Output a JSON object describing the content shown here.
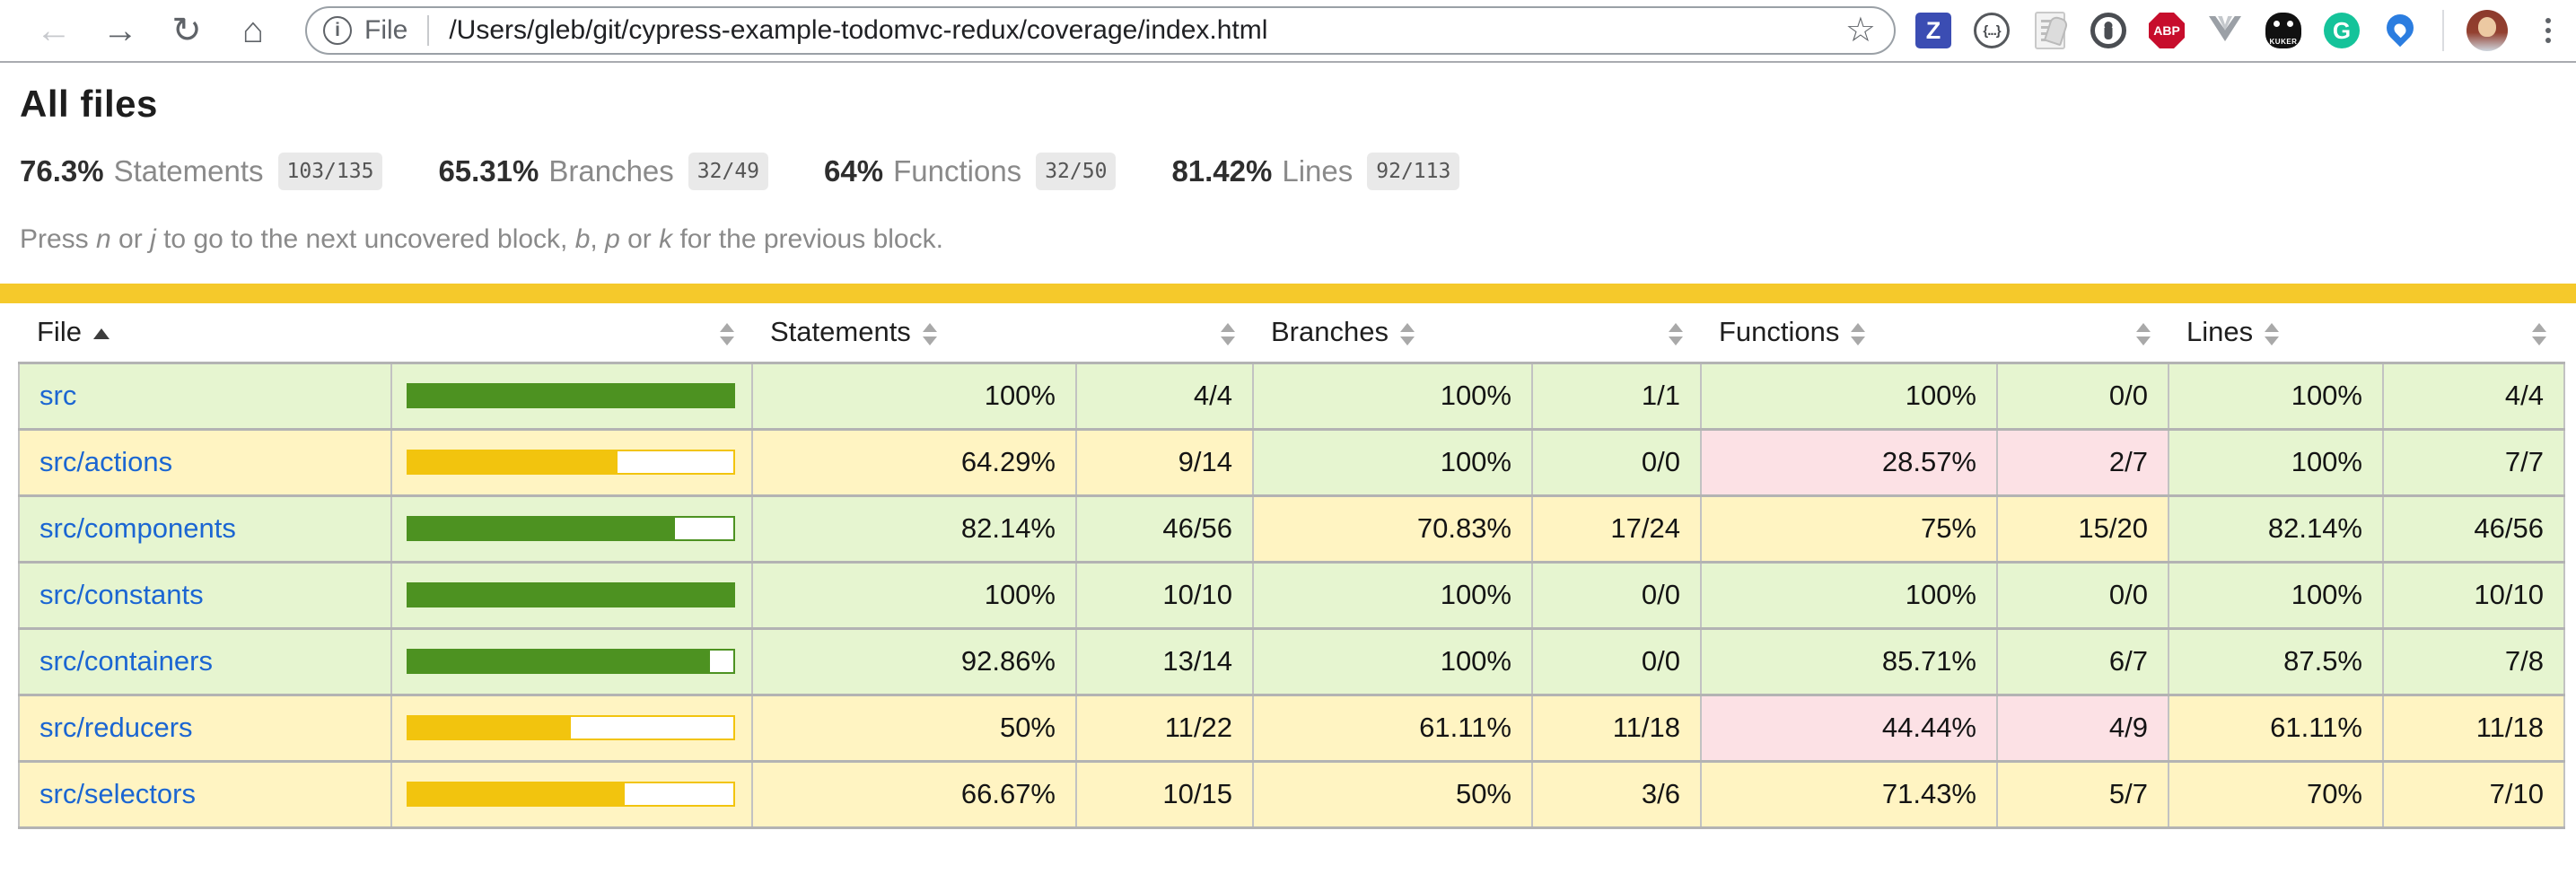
{
  "browser": {
    "address": {
      "scheme_label": "File",
      "url": "/Users/gleb/git/cypress-example-todomvc-redux/coverage/index.html"
    },
    "extension_labels": {
      "z": "Z",
      "json": "{...}",
      "abp": "ABP",
      "kuker": "KUKER",
      "grammarly": "G"
    }
  },
  "page": {
    "title": "All files",
    "summary": [
      {
        "pct": "76.3%",
        "label": "Statements",
        "fraction": "103/135"
      },
      {
        "pct": "65.31%",
        "label": "Branches",
        "fraction": "32/49"
      },
      {
        "pct": "64%",
        "label": "Functions",
        "fraction": "32/50"
      },
      {
        "pct": "81.42%",
        "label": "Lines",
        "fraction": "92/113"
      }
    ],
    "keyboard_help": [
      {
        "text": "Press "
      },
      {
        "text": "n",
        "italic": true
      },
      {
        "text": " or "
      },
      {
        "text": "j",
        "italic": true
      },
      {
        "text": " to go to the next uncovered block, "
      },
      {
        "text": "b",
        "italic": true
      },
      {
        "text": ", "
      },
      {
        "text": "p",
        "italic": true
      },
      {
        "text": " or "
      },
      {
        "text": "k",
        "italic": true
      },
      {
        "text": " for the previous block."
      }
    ]
  },
  "colors": {
    "high_bg": "#e6f5d0",
    "medium_bg": "#fff4c2",
    "low_bg": "#fce1e5",
    "bar_high": "#4d9221",
    "bar_medium": "#f2c40e",
    "status_line": "#f5c92b",
    "link": "#1b66d2"
  },
  "chart_data": {
    "type": "table",
    "title": "All files coverage",
    "columns": [
      "File",
      "Statements %",
      "Statements",
      "Branches %",
      "Branches",
      "Functions %",
      "Functions",
      "Lines %",
      "Lines"
    ],
    "rows": [
      [
        "src",
        "100%",
        "4/4",
        "100%",
        "1/1",
        "100%",
        "0/0",
        "100%",
        "4/4"
      ],
      [
        "src/actions",
        "64.29%",
        "9/14",
        "100%",
        "0/0",
        "28.57%",
        "2/7",
        "100%",
        "7/7"
      ],
      [
        "src/components",
        "82.14%",
        "46/56",
        "70.83%",
        "17/24",
        "75%",
        "15/20",
        "82.14%",
        "46/56"
      ],
      [
        "src/constants",
        "100%",
        "10/10",
        "100%",
        "0/0",
        "100%",
        "0/0",
        "100%",
        "10/10"
      ],
      [
        "src/containers",
        "92.86%",
        "13/14",
        "100%",
        "0/0",
        "85.71%",
        "6/7",
        "87.5%",
        "7/8"
      ],
      [
        "src/reducers",
        "50%",
        "11/22",
        "61.11%",
        "11/18",
        "44.44%",
        "4/9",
        "61.11%",
        "11/18"
      ],
      [
        "src/selectors",
        "66.67%",
        "10/15",
        "50%",
        "3/6",
        "71.43%",
        "5/7",
        "70%",
        "7/10"
      ]
    ]
  },
  "table": {
    "headers": {
      "file": "File",
      "statements": "Statements",
      "branches": "Branches",
      "functions": "Functions",
      "lines": "Lines"
    },
    "sort": {
      "column": "file",
      "direction": "asc"
    },
    "rows": [
      {
        "file": "src",
        "level": "high",
        "bar": {
          "fill": 100,
          "level": "high"
        },
        "statements": {
          "pct": "100%",
          "frac": "4/4",
          "level": "high"
        },
        "branches": {
          "pct": "100%",
          "frac": "1/1",
          "level": "high"
        },
        "functions": {
          "pct": "100%",
          "frac": "0/0",
          "level": "high"
        },
        "lines": {
          "pct": "100%",
          "frac": "4/4",
          "level": "high"
        }
      },
      {
        "file": "src/actions",
        "level": "medium",
        "bar": {
          "fill": 64.29,
          "level": "medium"
        },
        "statements": {
          "pct": "64.29%",
          "frac": "9/14",
          "level": "medium"
        },
        "branches": {
          "pct": "100%",
          "frac": "0/0",
          "level": "high"
        },
        "functions": {
          "pct": "28.57%",
          "frac": "2/7",
          "level": "low"
        },
        "lines": {
          "pct": "100%",
          "frac": "7/7",
          "level": "high"
        }
      },
      {
        "file": "src/components",
        "level": "high",
        "bar": {
          "fill": 82.14,
          "level": "high"
        },
        "statements": {
          "pct": "82.14%",
          "frac": "46/56",
          "level": "high"
        },
        "branches": {
          "pct": "70.83%",
          "frac": "17/24",
          "level": "medium"
        },
        "functions": {
          "pct": "75%",
          "frac": "15/20",
          "level": "medium"
        },
        "lines": {
          "pct": "82.14%",
          "frac": "46/56",
          "level": "high"
        }
      },
      {
        "file": "src/constants",
        "level": "high",
        "bar": {
          "fill": 100,
          "level": "high"
        },
        "statements": {
          "pct": "100%",
          "frac": "10/10",
          "level": "high"
        },
        "branches": {
          "pct": "100%",
          "frac": "0/0",
          "level": "high"
        },
        "functions": {
          "pct": "100%",
          "frac": "0/0",
          "level": "high"
        },
        "lines": {
          "pct": "100%",
          "frac": "10/10",
          "level": "high"
        }
      },
      {
        "file": "src/containers",
        "level": "high",
        "bar": {
          "fill": 92.86,
          "level": "high"
        },
        "statements": {
          "pct": "92.86%",
          "frac": "13/14",
          "level": "high"
        },
        "branches": {
          "pct": "100%",
          "frac": "0/0",
          "level": "high"
        },
        "functions": {
          "pct": "85.71%",
          "frac": "6/7",
          "level": "high"
        },
        "lines": {
          "pct": "87.5%",
          "frac": "7/8",
          "level": "high"
        }
      },
      {
        "file": "src/reducers",
        "level": "medium",
        "bar": {
          "fill": 50,
          "level": "medium"
        },
        "statements": {
          "pct": "50%",
          "frac": "11/22",
          "level": "medium"
        },
        "branches": {
          "pct": "61.11%",
          "frac": "11/18",
          "level": "medium"
        },
        "functions": {
          "pct": "44.44%",
          "frac": "4/9",
          "level": "low"
        },
        "lines": {
          "pct": "61.11%",
          "frac": "11/18",
          "level": "medium"
        }
      },
      {
        "file": "src/selectors",
        "level": "medium",
        "bar": {
          "fill": 66.67,
          "level": "medium"
        },
        "statements": {
          "pct": "66.67%",
          "frac": "10/15",
          "level": "medium"
        },
        "branches": {
          "pct": "50%",
          "frac": "3/6",
          "level": "medium"
        },
        "functions": {
          "pct": "71.43%",
          "frac": "5/7",
          "level": "medium"
        },
        "lines": {
          "pct": "70%",
          "frac": "7/10",
          "level": "medium"
        }
      }
    ]
  }
}
